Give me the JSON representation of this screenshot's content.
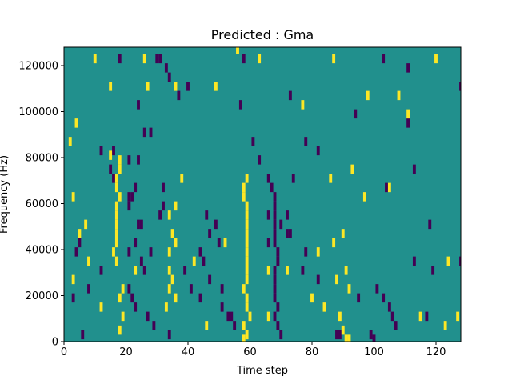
{
  "chart_data": {
    "type": "heatmap",
    "title": "Predicted : Gma",
    "xlabel": "Time step",
    "ylabel": "Frequency (Hz)",
    "xlim": [
      0,
      128
    ],
    "ylim": [
      0,
      128000
    ],
    "x_ticks": [
      0,
      20,
      40,
      60,
      80,
      100,
      120
    ],
    "x_tick_labels": [
      "0",
      "20",
      "40",
      "60",
      "80",
      "100",
      "120"
    ],
    "y_ticks": [
      0,
      20000,
      40000,
      60000,
      80000,
      100000,
      120000
    ],
    "y_tick_labels": [
      "0",
      "20000",
      "40000",
      "60000",
      "80000",
      "100000",
      "120000"
    ],
    "colormap": "viridis",
    "value_levels": [
      0,
      0.5,
      1
    ],
    "level_colors": [
      "#440154",
      "#21908d",
      "#fde725"
    ],
    "background_level": 0.5,
    "grid": false,
    "bin_size": {
      "time_step": 1,
      "frequency_hz": 4000
    },
    "high_cells": [
      [
        10,
        123000
      ],
      [
        26,
        123000
      ],
      [
        56,
        127000
      ],
      [
        63,
        123000
      ],
      [
        87,
        123000
      ],
      [
        120,
        123000
      ],
      [
        15,
        111000
      ],
      [
        27,
        111000
      ],
      [
        36,
        111000
      ],
      [
        49,
        111000
      ],
      [
        98,
        107000
      ],
      [
        108,
        107000
      ],
      [
        77,
        103000
      ],
      [
        111,
        99000
      ],
      [
        15,
        81000
      ],
      [
        18,
        79000
      ],
      [
        18,
        75000
      ],
      [
        17,
        71000
      ],
      [
        17,
        67000
      ],
      [
        18,
        63000
      ],
      [
        17,
        59000
      ],
      [
        17,
        55000
      ],
      [
        17,
        51000
      ],
      [
        17,
        47000
      ],
      [
        17,
        43000
      ],
      [
        16,
        39000
      ],
      [
        17,
        35000
      ],
      [
        19,
        23000
      ],
      [
        18,
        19000
      ],
      [
        12,
        15000
      ],
      [
        19,
        11000
      ],
      [
        18,
        5000
      ],
      [
        59,
        71000
      ],
      [
        58,
        67000
      ],
      [
        58,
        63000
      ],
      [
        59,
        59000
      ],
      [
        59,
        55000
      ],
      [
        59,
        51000
      ],
      [
        59,
        47000
      ],
      [
        59,
        43000
      ],
      [
        59,
        39000
      ],
      [
        59,
        35000
      ],
      [
        59,
        31000
      ],
      [
        59,
        27000
      ],
      [
        58,
        23000
      ],
      [
        59,
        19000
      ],
      [
        59,
        15000
      ],
      [
        60,
        11000
      ],
      [
        58,
        7000
      ],
      [
        59,
        3000
      ],
      [
        58,
        1000
      ],
      [
        38,
        71000
      ],
      [
        36,
        59000
      ],
      [
        34,
        55000
      ],
      [
        35,
        47000
      ],
      [
        36,
        43000
      ],
      [
        34,
        39000
      ],
      [
        34,
        31000
      ],
      [
        35,
        27000
      ],
      [
        34,
        23000
      ],
      [
        36,
        19000
      ],
      [
        33,
        15000
      ],
      [
        86,
        71000
      ],
      [
        93,
        75000
      ],
      [
        97,
        63000
      ],
      [
        105,
        67000
      ],
      [
        90,
        47000
      ],
      [
        87,
        43000
      ],
      [
        82,
        39000
      ],
      [
        91,
        31000
      ],
      [
        88,
        27000
      ],
      [
        92,
        23000
      ],
      [
        84,
        15000
      ],
      [
        89,
        11000
      ],
      [
        90,
        5000
      ],
      [
        91,
        1000
      ],
      [
        92,
        1000
      ],
      [
        115,
        11000
      ],
      [
        123,
        7000
      ],
      [
        127,
        11000
      ],
      [
        124,
        35000
      ],
      [
        66,
        31000
      ],
      [
        72,
        31000
      ],
      [
        80,
        19000
      ],
      [
        66,
        11000
      ],
      [
        5,
        47000
      ],
      [
        7,
        51000
      ],
      [
        3,
        63000
      ],
      [
        8,
        35000
      ],
      [
        3,
        27000
      ],
      [
        2,
        87000
      ],
      [
        4,
        95000
      ],
      [
        46,
        7000
      ],
      [
        52,
        43000
      ],
      [
        42,
        35000
      ],
      [
        23,
        31000
      ]
    ],
    "low_cells": [
      [
        18,
        123000
      ],
      [
        30,
        123000
      ],
      [
        31,
        123000
      ],
      [
        103,
        123000
      ],
      [
        111,
        119000
      ],
      [
        128,
        111000
      ],
      [
        34,
        115000
      ],
      [
        40,
        111000
      ],
      [
        73,
        107000
      ],
      [
        57,
        103000
      ],
      [
        94,
        99000
      ],
      [
        111,
        95000
      ],
      [
        28,
        91000
      ],
      [
        78,
        87000
      ],
      [
        12,
        83000
      ],
      [
        16,
        83000
      ],
      [
        21,
        79000
      ],
      [
        24,
        79000
      ],
      [
        15,
        75000
      ],
      [
        16,
        71000
      ],
      [
        23,
        67000
      ],
      [
        32,
        67000
      ],
      [
        21,
        63000
      ],
      [
        22,
        63000
      ],
      [
        21,
        59000
      ],
      [
        24,
        51000
      ],
      [
        25,
        51000
      ],
      [
        23,
        43000
      ],
      [
        21,
        39000
      ],
      [
        25,
        35000
      ],
      [
        26,
        31000
      ],
      [
        21,
        23000
      ],
      [
        22,
        19000
      ],
      [
        23,
        15000
      ],
      [
        27,
        11000
      ],
      [
        29,
        7000
      ],
      [
        34,
        3000
      ],
      [
        39,
        31000
      ],
      [
        41,
        23000
      ],
      [
        44,
        19000
      ],
      [
        47,
        27000
      ],
      [
        51,
        23000
      ],
      [
        51,
        15000
      ],
      [
        53,
        11000
      ],
      [
        55,
        7000
      ],
      [
        67,
        67000
      ],
      [
        68,
        63000
      ],
      [
        68,
        59000
      ],
      [
        68,
        55000
      ],
      [
        68,
        51000
      ],
      [
        68,
        47000
      ],
      [
        68,
        43000
      ],
      [
        69,
        39000
      ],
      [
        69,
        35000
      ],
      [
        68,
        31000
      ],
      [
        68,
        27000
      ],
      [
        68,
        23000
      ],
      [
        68,
        19000
      ],
      [
        69,
        15000
      ],
      [
        68,
        11000
      ],
      [
        69,
        7000
      ],
      [
        70,
        3000
      ],
      [
        66,
        55000
      ],
      [
        66,
        43000
      ],
      [
        70,
        51000
      ],
      [
        72,
        55000
      ],
      [
        72,
        47000
      ],
      [
        73,
        47000
      ],
      [
        78,
        39000
      ],
      [
        77,
        31000
      ],
      [
        82,
        27000
      ],
      [
        95,
        19000
      ],
      [
        101,
        23000
      ],
      [
        103,
        19000
      ],
      [
        105,
        15000
      ],
      [
        106,
        11000
      ],
      [
        107,
        7000
      ],
      [
        88,
        3000
      ],
      [
        89,
        3000
      ],
      [
        99,
        3000
      ],
      [
        100,
        1000
      ],
      [
        104,
        67000
      ],
      [
        113,
        75000
      ],
      [
        118,
        51000
      ],
      [
        119,
        31000
      ],
      [
        113,
        35000
      ],
      [
        117,
        11000
      ],
      [
        128,
        35000
      ],
      [
        63,
        79000
      ],
      [
        61,
        87000
      ],
      [
        82,
        83000
      ],
      [
        74,
        71000
      ],
      [
        46,
        55000
      ],
      [
        49,
        51000
      ],
      [
        47,
        47000
      ],
      [
        44,
        39000
      ],
      [
        45,
        35000
      ],
      [
        50,
        43000
      ],
      [
        31,
        55000
      ],
      [
        32,
        59000
      ],
      [
        28,
        39000
      ],
      [
        12,
        31000
      ],
      [
        6,
        3000
      ],
      [
        3,
        19000
      ],
      [
        5,
        43000
      ],
      [
        4,
        39000
      ],
      [
        8,
        23000
      ],
      [
        24,
        103000
      ],
      [
        33,
        119000
      ],
      [
        37,
        107000
      ],
      [
        58,
        123000
      ],
      [
        26,
        91000
      ],
      [
        66,
        71000
      ],
      [
        54,
        11000
      ]
    ]
  }
}
